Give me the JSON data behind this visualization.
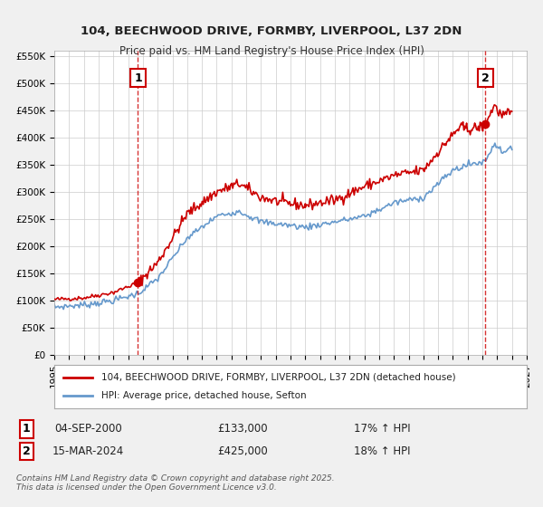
{
  "title1": "104, BEECHWOOD DRIVE, FORMBY, LIVERPOOL, L37 2DN",
  "title2": "Price paid vs. HM Land Registry's House Price Index (HPI)",
  "legend_red": "104, BEECHWOOD DRIVE, FORMBY, LIVERPOOL, L37 2DN (detached house)",
  "legend_blue": "HPI: Average price, detached house, Sefton",
  "annotation1_label": "1",
  "annotation1_date": "04-SEP-2000",
  "annotation1_price": "£133,000",
  "annotation1_hpi": "17% ↑ HPI",
  "annotation2_label": "2",
  "annotation2_date": "15-MAR-2024",
  "annotation2_price": "£425,000",
  "annotation2_hpi": "18% ↑ HPI",
  "footer": "Contains HM Land Registry data © Crown copyright and database right 2025.\nThis data is licensed under the Open Government Licence v3.0.",
  "red_color": "#cc0000",
  "blue_color": "#6699cc",
  "vline_color": "#cc0000",
  "grid_color": "#cccccc",
  "bg_color": "#f5f5f5",
  "plot_bg": "#ffffff",
  "ylim": [
    0,
    560000
  ],
  "xlim_start": 1995.0,
  "xlim_end": 2027.0,
  "yticks": [
    0,
    50000,
    100000,
    150000,
    200000,
    250000,
    300000,
    350000,
    400000,
    450000,
    500000,
    550000
  ],
  "ytick_labels": [
    "£0",
    "£50K",
    "£100K",
    "£150K",
    "£200K",
    "£250K",
    "£300K",
    "£350K",
    "£400K",
    "£450K",
    "£500K",
    "£550K"
  ],
  "xticks": [
    1995,
    1996,
    1997,
    1998,
    1999,
    2000,
    2001,
    2002,
    2003,
    2004,
    2005,
    2006,
    2007,
    2008,
    2009,
    2010,
    2011,
    2012,
    2013,
    2014,
    2015,
    2016,
    2017,
    2018,
    2019,
    2020,
    2021,
    2022,
    2023,
    2024,
    2025,
    2026,
    2027
  ],
  "vline1_x": 2000.67,
  "vline2_x": 2024.21,
  "marker1_x": 2000.67,
  "marker1_y": 133000,
  "marker2_x": 2024.21,
  "marker2_y": 425000
}
